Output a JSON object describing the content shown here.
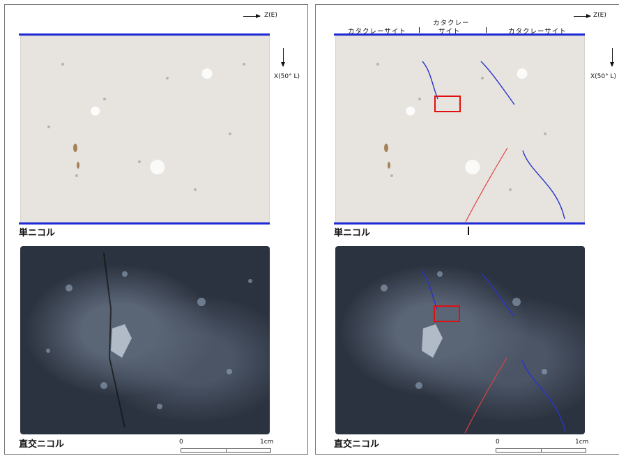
{
  "left_panel": {
    "axis_z_label": "Z(E)",
    "axis_x_label": "X(50° L)",
    "caption_top": "単ニコル",
    "caption_bottom": "直交ニコル",
    "scale": {
      "start_label": "0",
      "end_label": "1cm"
    }
  },
  "right_panel": {
    "axis_z_label": "Z(E)",
    "axis_x_label": "X(50° L)",
    "zone_left": "カタクレーサイト",
    "zone_middle_line1": "カタクレー",
    "zone_middle_line2": "サイト",
    "zone_right": "カタクレーサイト",
    "caption_top": "単ニコル",
    "caption_bottom": "直交ニコル",
    "scale": {
      "start_label": "0",
      "end_label": "1cm"
    }
  },
  "colors": {
    "baseline_blue": "#1f2ad6",
    "trace_blue": "#2a34c8",
    "trace_red": "#e04040",
    "box_red": "#e01010"
  }
}
